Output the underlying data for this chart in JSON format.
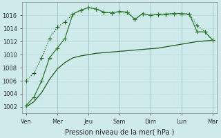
{
  "bg_color": "#ceeaea",
  "grid_major_color": "#b0d4d4",
  "grid_minor_color": "#daf0f0",
  "xlabel": "Pression niveau de la mer( hPa )",
  "ylim": [
    1001.0,
    1018.0
  ],
  "yticks": [
    1002,
    1004,
    1006,
    1008,
    1010,
    1012,
    1014,
    1016
  ],
  "x_labels": [
    "Ven",
    "Mer",
    "Jeu",
    "Sam",
    "Dim",
    "Lun",
    "Mar"
  ],
  "x_tick_positions": [
    0,
    4,
    8,
    12,
    16,
    20,
    24
  ],
  "n_points": 25,
  "line_upper": [
    1006.0,
    1007.2,
    1009.5,
    1012.5,
    1014.2,
    1015.0,
    1016.2,
    1016.8,
    1017.2,
    1017.0,
    1016.5,
    1016.4,
    1016.6,
    1016.5,
    1015.4,
    1016.3,
    1016.0,
    1016.2,
    1016.2,
    1016.3,
    1016.3,
    1016.2,
    1014.5,
    1013.5,
    1012.2
  ],
  "line_lower": [
    1002.2,
    1003.5,
    1006.0,
    1009.5,
    1011.0,
    1012.5,
    1016.2,
    1016.8,
    1017.2,
    1017.0,
    1016.5,
    1016.4,
    1016.6,
    1016.5,
    1015.4,
    1016.3,
    1016.0,
    1016.2,
    1016.2,
    1016.3,
    1016.3,
    1016.2,
    1013.5,
    1013.5,
    1012.2
  ],
  "line_smooth": [
    1002.0,
    1002.8,
    1004.2,
    1006.2,
    1007.8,
    1008.8,
    1009.5,
    1009.8,
    1010.0,
    1010.2,
    1010.3,
    1010.4,
    1010.5,
    1010.6,
    1010.7,
    1010.8,
    1010.9,
    1011.0,
    1011.2,
    1011.4,
    1011.6,
    1011.8,
    1012.0,
    1012.1,
    1012.2
  ],
  "figsize": [
    3.2,
    2.0
  ],
  "dpi": 100
}
